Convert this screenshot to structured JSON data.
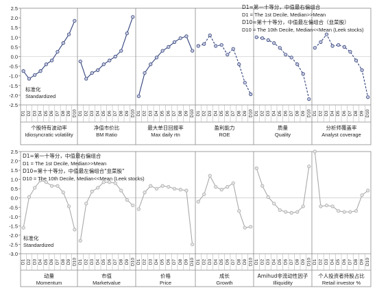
{
  "chart_data": [
    {
      "type": "line",
      "panel": "top",
      "y_tick_labels": [
        "2.5",
        "2.0",
        "1.5",
        "1.0",
        "0.5",
        "0.0",
        "-0.5",
        "-1.0",
        "-1.5",
        "-2.0",
        "-2.5"
      ],
      "ylim": [
        -2.5,
        2.5
      ],
      "y_note": [
        "标准化",
        "Standardized"
      ],
      "legend": [
        "D1=第一十等分，中值最右偏组合",
        "D1 = The 1st Decile, Median>>Mean",
        "D10=第十十等分，中值最左偏组合（韭菜股）",
        "D10 = The 10th Decile, Median<<Mean (Leek stocks)"
      ],
      "legend_placement": "top-right",
      "x_categories": [
        "D1",
        "D2",
        "D3",
        "D4",
        "D5",
        "D6",
        "D7",
        "D8",
        "D9",
        "D10"
      ],
      "series": [
        {
          "name_cn": "个股特有波动率",
          "name_en": "Idiosyncratic volatility",
          "style": "solid",
          "color": "#2e3f78",
          "values": [
            -0.75,
            -1.15,
            -0.95,
            -0.75,
            -0.4,
            -0.2,
            0.25,
            0.7,
            1.15,
            1.85
          ]
        },
        {
          "name_cn": "净值市价比",
          "name_en": "BM Ratio",
          "style": "solid",
          "color": "#2e3f78",
          "values": [
            -0.25,
            -1.15,
            -0.85,
            -0.7,
            -0.4,
            -0.2,
            0.0,
            0.3,
            1.2,
            2.05
          ]
        },
        {
          "name_cn": "最大单日回报率",
          "name_en": "Max  daily rtn",
          "style": "solid",
          "color": "#2e3f78",
          "values": [
            -2.05,
            -0.85,
            -0.4,
            -0.05,
            0.3,
            0.5,
            0.75,
            0.95,
            1.05,
            0.3
          ]
        },
        {
          "name_cn": "盈利能力",
          "name_en": "ROE",
          "style": "dashed",
          "color": "#2e3f78",
          "values": [
            0.55,
            0.65,
            1.1,
            0.55,
            0.6,
            0.1,
            0.4,
            -0.4,
            -1.35,
            -1.95
          ]
        },
        {
          "name_cn": "质量",
          "name_en": "Quality",
          "style": "dashed",
          "color": "#2e3f78",
          "values": [
            1.0,
            0.95,
            0.85,
            0.7,
            0.45,
            0.1,
            -0.05,
            -0.4,
            -0.9,
            -2.2
          ]
        },
        {
          "name_cn": "分析师覆盖率",
          "name_en": "Analyst coverage",
          "style": "dashed",
          "color": "#2e3f78",
          "values": [
            0.45,
            0.75,
            1.15,
            0.55,
            0.6,
            0.5,
            0.25,
            -0.2,
            -0.7,
            -2.1
          ]
        }
      ]
    },
    {
      "type": "line",
      "panel": "bottom",
      "y_tick_labels": [
        "2.5",
        "2.0",
        "1.5",
        "1.0",
        "0.5",
        "0.0",
        "-0.5",
        "-1.0",
        "-1.5",
        "-2.0",
        "-2.5",
        "-3.0"
      ],
      "ylim": [
        -3.0,
        2.5
      ],
      "y_note": [
        "标准化",
        "Standardized"
      ],
      "legend": [
        "D1=第一十等分，中值最右偏组合",
        "D1 = The 1st Decile, Median>>Mean",
        "D10=第十十等分，中值最左偏组合\"韭菜股\"",
        "D10 = The 10th Decile, Median<<Mean   (Leek stocks)"
      ],
      "legend_placement": "top-left",
      "x_categories": [
        "D1",
        "D2",
        "D3",
        "D4",
        "D5",
        "D6",
        "D7",
        "D8",
        "D9",
        "D10"
      ],
      "series": [
        {
          "name_cn": "动量",
          "name_en": "Momentum",
          "style": "solid",
          "color": "#a9a9a9",
          "values": [
            -1.6,
            0.05,
            0.55,
            0.95,
            0.85,
            0.65,
            0.65,
            0.3,
            -0.45,
            -1.7
          ]
        },
        {
          "name_cn": "市值",
          "name_en": "Marketvalue",
          "style": "solid",
          "color": "#a9a9a9",
          "values": [
            -2.3,
            -0.3,
            0.35,
            0.55,
            0.85,
            0.85,
            0.8,
            0.4,
            -0.1,
            -0.4
          ]
        },
        {
          "name_cn": "价格",
          "name_en": "Price",
          "style": "solid",
          "color": "#a9a9a9",
          "values": [
            -0.6,
            0.3,
            0.65,
            0.5,
            0.65,
            0.6,
            0.5,
            0.45,
            0.4,
            -2.5
          ]
        },
        {
          "name_cn": "成长",
          "name_en": "Growth",
          "style": "solid",
          "color": "#a9a9a9",
          "values": [
            -0.2,
            0.2,
            1.2,
            0.6,
            0.45,
            0.6,
            0.8,
            -0.7,
            -1.6,
            -1.55
          ]
        },
        {
          "name_cn": "Amihud非流动性因子",
          "name_en": "Illiquidity",
          "style": "solid",
          "color": "#a9a9a9",
          "values": [
            1.6,
            0.65,
            0.05,
            -0.3,
            -0.65,
            -0.75,
            -0.8,
            -0.75,
            -0.45,
            1.7
          ]
        },
        {
          "name_cn": "个人投资者持股占比",
          "name_en": "Retail investor %",
          "style": "solid",
          "color": "#a9a9a9",
          "values": [
            2.5,
            -0.45,
            -0.4,
            -0.45,
            -0.7,
            -0.75,
            -0.75,
            -0.7,
            0.15,
            0.4
          ]
        }
      ]
    }
  ]
}
